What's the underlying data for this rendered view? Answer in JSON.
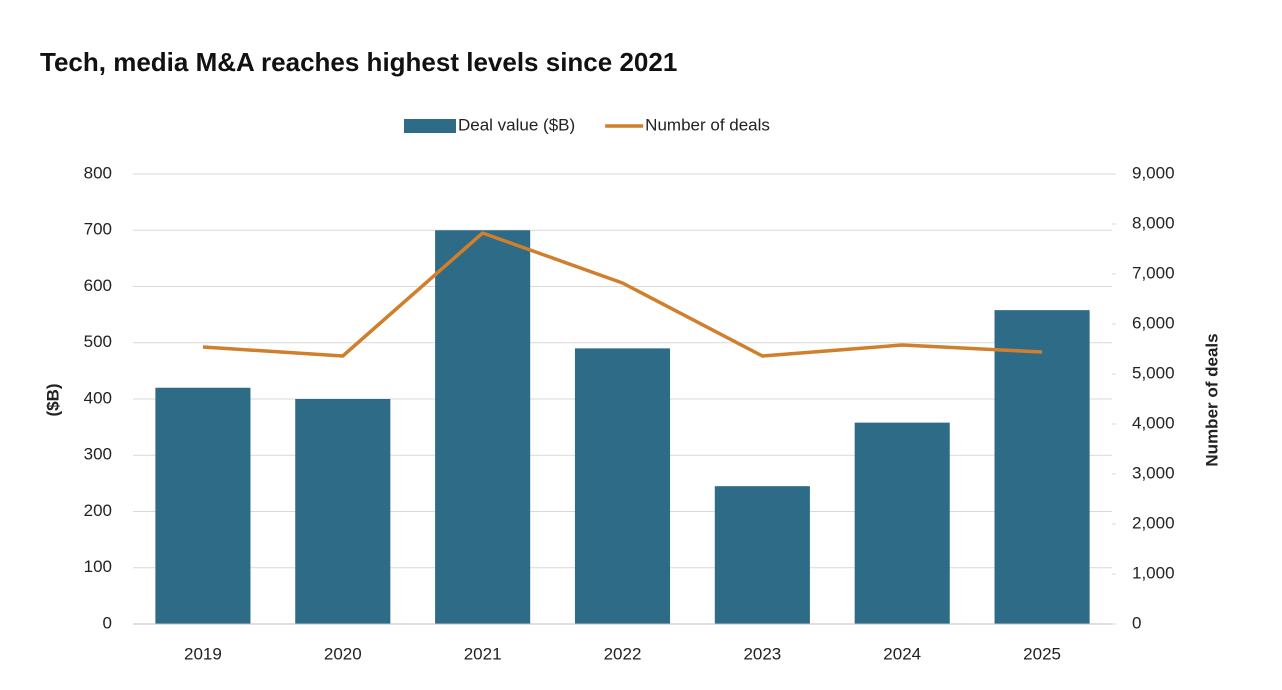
{
  "chart_data": {
    "type": "bar",
    "title": "Tech, media M&A reaches highest levels since 2021",
    "categories": [
      "2019",
      "2020",
      "2021",
      "2022",
      "2023",
      "2024",
      "2025"
    ],
    "series": [
      {
        "name": "Deal value ($B)",
        "type": "bar",
        "color": "#2e6b87",
        "values": [
          420,
          400,
          700,
          490,
          245,
          358,
          558
        ]
      },
      {
        "name": "Number of deals",
        "type": "line",
        "axis": "y2",
        "color": "#d07f2c",
        "values": [
          5540,
          5360,
          7820,
          6820,
          5360,
          5580,
          5440
        ]
      }
    ],
    "ylabel": "($B)",
    "y2label": "Number of deals",
    "ylim": [
      0,
      800
    ],
    "yticks": [
      0,
      100,
      200,
      300,
      400,
      500,
      600,
      700,
      800
    ],
    "y2lim": [
      0,
      9000
    ],
    "y2ticks": [
      0,
      {
        "value": 1000,
        "label": "1,000"
      },
      {
        "value": 2000,
        "label": "2,000"
      },
      {
        "value": 3000,
        "label": "3,000"
      },
      {
        "value": 4000,
        "label": "4,000"
      },
      {
        "value": 5000,
        "label": "5,000"
      },
      {
        "value": 6000,
        "label": "6,000"
      },
      {
        "value": 7000,
        "label": "7,000"
      },
      {
        "value": 8000,
        "label": "8,000"
      },
      {
        "value": 9000,
        "label": "9,000"
      }
    ],
    "grid": true,
    "legend": "top"
  }
}
